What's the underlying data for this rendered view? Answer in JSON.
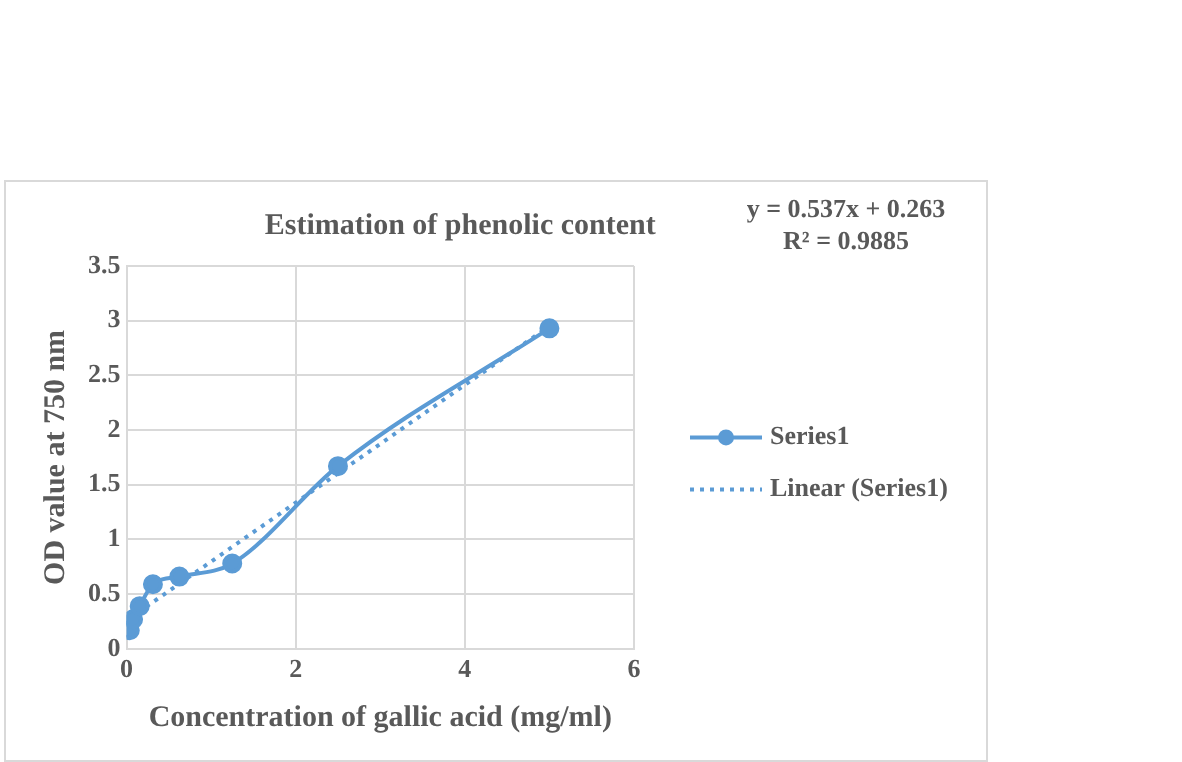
{
  "chart_data": {
    "type": "scatter",
    "title": "Estimation of phenolic content",
    "xlabel": "Concentration of gallic acid (mg/ml)",
    "ylabel": "OD value at 750 nm",
    "x": [
      0.039,
      0.078,
      0.156,
      0.3125,
      0.625,
      1.25,
      2.5,
      5
    ],
    "series": [
      {
        "name": "Series1",
        "type": "line",
        "color": "#5b9bd5",
        "marker": "circle",
        "line_style": "solid",
        "values": [
          0.17,
          0.27,
          0.39,
          0.59,
          0.66,
          0.78,
          1.67,
          2.93
        ]
      },
      {
        "name": "Linear (Series1)",
        "type": "line",
        "color": "#5b9bd5",
        "marker": "none",
        "line_style": "dotted",
        "x": [
          0.039,
          5
        ],
        "values": [
          0.28,
          2.95
        ]
      }
    ],
    "annotations": [
      "y = 0.537x + 0.263",
      "R² = 0.9885"
    ],
    "xlim": [
      0,
      6
    ],
    "xticks": [
      0,
      2,
      4,
      6
    ],
    "ylim": [
      0,
      3.5
    ],
    "yticks": [
      0,
      0.5,
      1,
      1.5,
      2,
      2.5,
      3,
      3.5
    ],
    "grid": true,
    "legend": "right"
  }
}
